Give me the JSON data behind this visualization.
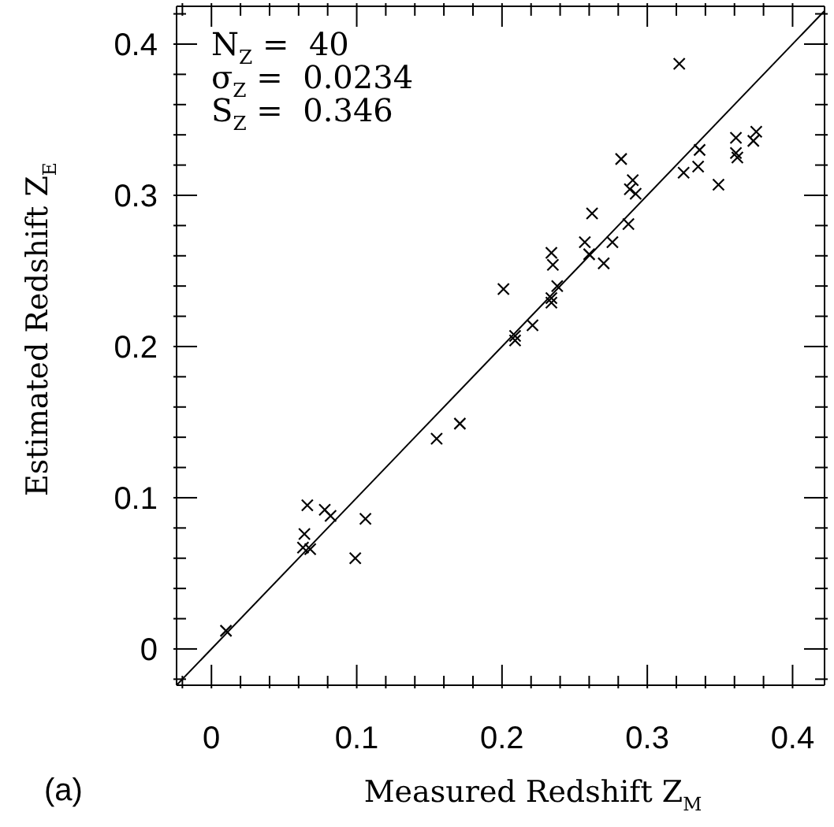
{
  "chart_data": {
    "type": "scatter",
    "xlabel": "Measured Redshift Z$_{M}$",
    "ylabel": "Estimated Redshift Z$_{E}$",
    "annotations": [
      "N$_{Z}$ =  40",
      "σ$_{Z}$ =  0.0234",
      "S$_{Z}$ =  0.346",
      "(a)"
    ],
    "xlim": [
      -0.024,
      0.422
    ],
    "ylim": [
      -0.024,
      0.425
    ],
    "xticks": [
      {
        "value": -0.02,
        "label": null
      },
      0,
      {
        "value": 0.02,
        "label": null
      },
      {
        "value": 0.04,
        "label": null
      },
      {
        "value": 0.06,
        "label": null
      },
      {
        "value": 0.08,
        "label": null
      },
      0.1,
      {
        "value": 0.12,
        "label": null
      },
      {
        "value": 0.14,
        "label": null
      },
      {
        "value": 0.16,
        "label": null
      },
      {
        "value": 0.18,
        "label": null
      },
      0.2,
      {
        "value": 0.22,
        "label": null
      },
      {
        "value": 0.24,
        "label": null
      },
      {
        "value": 0.26,
        "label": null
      },
      {
        "value": 0.28,
        "label": null
      },
      0.3,
      {
        "value": 0.32,
        "label": null
      },
      {
        "value": 0.34,
        "label": null
      },
      {
        "value": 0.36,
        "label": null
      },
      {
        "value": 0.38,
        "label": null
      },
      0.4
    ],
    "yticks": [
      {
        "value": -0.02,
        "label": null
      },
      0,
      {
        "value": 0.02,
        "label": null
      },
      {
        "value": 0.04,
        "label": null
      },
      {
        "value": 0.06,
        "label": null
      },
      {
        "value": 0.08,
        "label": null
      },
      0.1,
      {
        "value": 0.12,
        "label": null
      },
      {
        "value": 0.14,
        "label": null
      },
      {
        "value": 0.16,
        "label": null
      },
      {
        "value": 0.18,
        "label": null
      },
      0.2,
      {
        "value": 0.22,
        "label": null
      },
      {
        "value": 0.24,
        "label": null
      },
      {
        "value": 0.26,
        "label": null
      },
      {
        "value": 0.28,
        "label": null
      },
      0.3,
      {
        "value": 0.32,
        "label": null
      },
      {
        "value": 0.34,
        "label": null
      },
      {
        "value": 0.36,
        "label": null
      },
      {
        "value": 0.38,
        "label": null
      },
      0.4,
      {
        "value": 0.42,
        "label": null
      }
    ],
    "grid": false,
    "legend": false,
    "marker": "cross",
    "series": [
      {
        "color": "#000000",
        "x": [
          0.322,
          0.201,
          0.209,
          0.209,
          0.221,
          0.234,
          0.235,
          0.234,
          0.234,
          0.238,
          0.257,
          0.26,
          0.262,
          0.27,
          0.276,
          0.282,
          0.287,
          0.29,
          0.288,
          0.292,
          0.325,
          0.336,
          0.335,
          0.349,
          0.361,
          0.361,
          0.362,
          0.373,
          0.375,
          0.155,
          0.171,
          0.066,
          0.078,
          0.082,
          0.064,
          0.063,
          0.068,
          0.106,
          0.099,
          0.01
        ],
        "values": [
          0.387,
          0.238,
          0.207,
          0.204,
          0.214,
          0.262,
          0.254,
          0.232,
          0.229,
          0.24,
          0.269,
          0.261,
          0.288,
          0.255,
          0.269,
          0.324,
          0.281,
          0.31,
          0.304,
          0.301,
          0.315,
          0.33,
          0.319,
          0.307,
          0.338,
          0.328,
          0.325,
          0.336,
          0.342,
          0.139,
          0.149,
          0.095,
          0.092,
          0.088,
          0.076,
          0.067,
          0.066,
          0.086,
          0.06,
          0.012
        ]
      },
      {
        "type": "line",
        "color": "#000000",
        "marker": "none",
        "line_style": "solid",
        "x": [
          -0.024,
          0.422
        ],
        "values": [
          -0.024,
          0.422
        ]
      }
    ]
  }
}
